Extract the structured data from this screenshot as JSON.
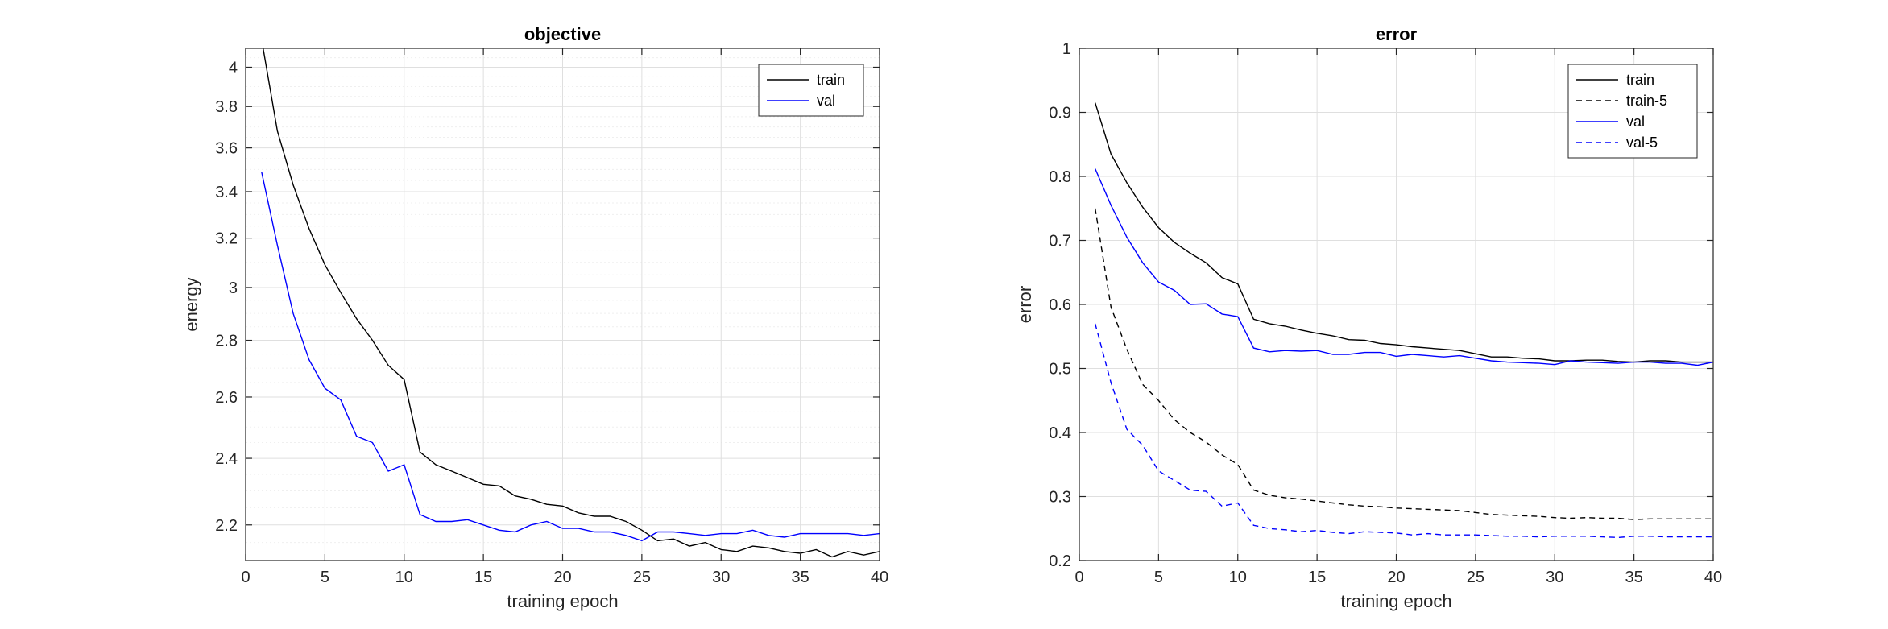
{
  "chart_data": [
    {
      "type": "line",
      "title": "objective",
      "xlabel": "training epoch",
      "ylabel": "energy",
      "xlim": [
        0,
        40
      ],
      "ylim": [
        2.1,
        4.1
      ],
      "yscale": "log",
      "xticks": [
        0,
        5,
        10,
        15,
        20,
        25,
        30,
        35,
        40
      ],
      "yticks": [
        2.2,
        2.4,
        2.6,
        2.8,
        3,
        3.2,
        3.4,
        3.6,
        3.8,
        4
      ],
      "ytick_labels": [
        "2.2",
        "2.4",
        "2.6",
        "2.8",
        "3",
        "3.2",
        "3.4",
        "3.6",
        "3.8",
        "4"
      ],
      "grid": true,
      "legend_position": "top-right",
      "series": [
        {
          "name": "train",
          "color": "#000000",
          "dash": "solid",
          "x": [
            1,
            2,
            3,
            4,
            5,
            6,
            7,
            8,
            9,
            10,
            11,
            12,
            13,
            14,
            15,
            16,
            17,
            18,
            19,
            20,
            21,
            22,
            23,
            24,
            25,
            26,
            27,
            28,
            29,
            30,
            31,
            32,
            33,
            34,
            35,
            36,
            37,
            38,
            39,
            40
          ],
          "values": [
            4.15,
            3.68,
            3.43,
            3.24,
            3.09,
            2.98,
            2.88,
            2.8,
            2.71,
            2.66,
            2.42,
            2.38,
            2.36,
            2.34,
            2.32,
            2.315,
            2.285,
            2.275,
            2.26,
            2.255,
            2.235,
            2.225,
            2.225,
            2.21,
            2.185,
            2.155,
            2.16,
            2.14,
            2.15,
            2.13,
            2.125,
            2.14,
            2.135,
            2.125,
            2.12,
            2.13,
            2.11,
            2.125,
            2.115,
            2.125
          ]
        },
        {
          "name": "val",
          "color": "#0000ff",
          "dash": "solid",
          "x": [
            1,
            2,
            3,
            4,
            5,
            6,
            7,
            8,
            9,
            10,
            11,
            12,
            13,
            14,
            15,
            16,
            17,
            18,
            19,
            20,
            21,
            22,
            23,
            24,
            25,
            26,
            27,
            28,
            29,
            30,
            31,
            32,
            33,
            34,
            35,
            36,
            37,
            38,
            39,
            40
          ],
          "values": [
            3.49,
            3.17,
            2.9,
            2.73,
            2.63,
            2.59,
            2.47,
            2.45,
            2.36,
            2.38,
            2.23,
            2.21,
            2.21,
            2.215,
            2.2,
            2.185,
            2.18,
            2.2,
            2.21,
            2.19,
            2.19,
            2.18,
            2.18,
            2.17,
            2.155,
            2.18,
            2.18,
            2.175,
            2.17,
            2.175,
            2.175,
            2.185,
            2.17,
            2.165,
            2.175,
            2.175,
            2.175,
            2.175,
            2.17,
            2.175
          ]
        }
      ]
    },
    {
      "type": "line",
      "title": "error",
      "xlabel": "training epoch",
      "ylabel": "error",
      "xlim": [
        0,
        40
      ],
      "ylim": [
        0.2,
        1
      ],
      "yscale": "linear",
      "xticks": [
        0,
        5,
        10,
        15,
        20,
        25,
        30,
        35,
        40
      ],
      "yticks": [
        0.2,
        0.3,
        0.4,
        0.5,
        0.6,
        0.7,
        0.8,
        0.9,
        1
      ],
      "ytick_labels": [
        "0.2",
        "0.3",
        "0.4",
        "0.5",
        "0.6",
        "0.7",
        "0.8",
        "0.9",
        "1"
      ],
      "grid": true,
      "legend_position": "top-right",
      "series": [
        {
          "name": "train",
          "color": "#000000",
          "dash": "solid",
          "x": [
            1,
            2,
            3,
            4,
            5,
            6,
            7,
            8,
            9,
            10,
            11,
            12,
            13,
            14,
            15,
            16,
            17,
            18,
            19,
            20,
            21,
            22,
            23,
            24,
            25,
            26,
            27,
            28,
            29,
            30,
            31,
            32,
            33,
            34,
            35,
            36,
            37,
            38,
            39,
            40
          ],
          "values": [
            0.915,
            0.835,
            0.79,
            0.752,
            0.72,
            0.697,
            0.68,
            0.665,
            0.642,
            0.632,
            0.577,
            0.57,
            0.566,
            0.56,
            0.555,
            0.551,
            0.545,
            0.544,
            0.539,
            0.537,
            0.534,
            0.532,
            0.53,
            0.528,
            0.523,
            0.518,
            0.518,
            0.516,
            0.515,
            0.512,
            0.512,
            0.513,
            0.513,
            0.511,
            0.51,
            0.512,
            0.512,
            0.51,
            0.51,
            0.51
          ]
        },
        {
          "name": "train-5",
          "color": "#000000",
          "dash": "dashed",
          "x": [
            1,
            2,
            3,
            4,
            5,
            6,
            7,
            8,
            9,
            10,
            11,
            12,
            13,
            14,
            15,
            16,
            17,
            18,
            19,
            20,
            21,
            22,
            23,
            24,
            25,
            26,
            27,
            28,
            29,
            30,
            31,
            32,
            33,
            34,
            35,
            36,
            37,
            38,
            39,
            40
          ],
          "values": [
            0.75,
            0.596,
            0.53,
            0.475,
            0.45,
            0.42,
            0.4,
            0.385,
            0.365,
            0.35,
            0.31,
            0.302,
            0.298,
            0.296,
            0.293,
            0.29,
            0.287,
            0.285,
            0.284,
            0.282,
            0.281,
            0.28,
            0.279,
            0.278,
            0.275,
            0.272,
            0.271,
            0.27,
            0.269,
            0.267,
            0.266,
            0.267,
            0.266,
            0.266,
            0.264,
            0.265,
            0.265,
            0.265,
            0.265,
            0.265
          ]
        },
        {
          "name": "val",
          "color": "#0000ff",
          "dash": "solid",
          "x": [
            1,
            2,
            3,
            4,
            5,
            6,
            7,
            8,
            9,
            10,
            11,
            12,
            13,
            14,
            15,
            16,
            17,
            18,
            19,
            20,
            21,
            22,
            23,
            24,
            25,
            26,
            27,
            28,
            29,
            30,
            31,
            32,
            33,
            34,
            35,
            36,
            37,
            38,
            39,
            40
          ],
          "values": [
            0.812,
            0.755,
            0.705,
            0.665,
            0.635,
            0.622,
            0.6,
            0.601,
            0.585,
            0.581,
            0.532,
            0.526,
            0.528,
            0.527,
            0.528,
            0.522,
            0.522,
            0.525,
            0.525,
            0.519,
            0.522,
            0.52,
            0.518,
            0.52,
            0.516,
            0.512,
            0.51,
            0.509,
            0.508,
            0.506,
            0.512,
            0.51,
            0.509,
            0.508,
            0.51,
            0.51,
            0.508,
            0.508,
            0.505,
            0.51
          ]
        },
        {
          "name": "val-5",
          "color": "#0000ff",
          "dash": "dashed",
          "x": [
            1,
            2,
            3,
            4,
            5,
            6,
            7,
            8,
            9,
            10,
            11,
            12,
            13,
            14,
            15,
            16,
            17,
            18,
            19,
            20,
            21,
            22,
            23,
            24,
            25,
            26,
            27,
            28,
            29,
            30,
            31,
            32,
            33,
            34,
            35,
            36,
            37,
            38,
            39,
            40
          ],
          "values": [
            0.57,
            0.478,
            0.405,
            0.38,
            0.34,
            0.325,
            0.31,
            0.308,
            0.285,
            0.29,
            0.255,
            0.25,
            0.248,
            0.245,
            0.247,
            0.244,
            0.242,
            0.245,
            0.244,
            0.243,
            0.24,
            0.242,
            0.24,
            0.24,
            0.24,
            0.239,
            0.238,
            0.238,
            0.237,
            0.238,
            0.238,
            0.238,
            0.237,
            0.236,
            0.238,
            0.238,
            0.237,
            0.237,
            0.237,
            0.237
          ]
        }
      ]
    }
  ]
}
